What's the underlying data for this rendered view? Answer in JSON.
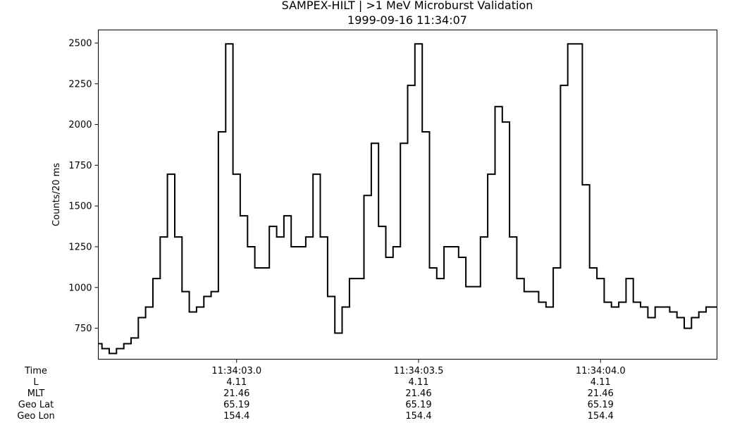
{
  "chart_data": {
    "type": "line",
    "drawstyle": "steps-mid",
    "title": "SAMPEX-HILT | >1 MeV Microburst Validation",
    "subtitle": "1999-09-16 11:34:07",
    "xlabel": "",
    "ylabel": "Counts/20 ms",
    "ylim": [
      560,
      2580
    ],
    "yticks": [
      750,
      1000,
      1250,
      1500,
      1750,
      2000,
      2250,
      2500
    ],
    "xlim": [
      "11:34:02.620",
      "11:34:04.320"
    ],
    "xtick_times": [
      "11:34:03.0",
      "11:34:03.5",
      "11:34:04.0"
    ],
    "sample_interval_ms": 20,
    "grid": false,
    "series": [
      {
        "color": "#000000",
        "x": [
          "11:34:02.620",
          "11:34:02.640",
          "11:34:02.660",
          "11:34:02.680",
          "11:34:02.700",
          "11:34:02.720",
          "11:34:02.740",
          "11:34:02.760",
          "11:34:02.780",
          "11:34:02.800",
          "11:34:02.820",
          "11:34:02.840",
          "11:34:02.860",
          "11:34:02.880",
          "11:34:02.900",
          "11:34:02.920",
          "11:34:02.940",
          "11:34:02.960",
          "11:34:02.980",
          "11:34:03.000",
          "11:34:03.020",
          "11:34:03.040",
          "11:34:03.060",
          "11:34:03.080",
          "11:34:03.100",
          "11:34:03.120",
          "11:34:03.140",
          "11:34:03.160",
          "11:34:03.180",
          "11:34:03.200",
          "11:34:03.220",
          "11:34:03.240",
          "11:34:03.260",
          "11:34:03.280",
          "11:34:03.300",
          "11:34:03.320",
          "11:34:03.340",
          "11:34:03.360",
          "11:34:03.380",
          "11:34:03.400",
          "11:34:03.420",
          "11:34:03.440",
          "11:34:03.460",
          "11:34:03.480",
          "11:34:03.500",
          "11:34:03.520",
          "11:34:03.540",
          "11:34:03.560",
          "11:34:03.580",
          "11:34:03.600",
          "11:34:03.620",
          "11:34:03.640",
          "11:34:03.660",
          "11:34:03.680",
          "11:34:03.700",
          "11:34:03.720",
          "11:34:03.740",
          "11:34:03.760",
          "11:34:03.780",
          "11:34:03.800",
          "11:34:03.820",
          "11:34:03.840",
          "11:34:03.860",
          "11:34:03.880",
          "11:34:03.900",
          "11:34:03.920",
          "11:34:03.940",
          "11:34:03.960",
          "11:34:03.980",
          "11:34:04.000",
          "11:34:04.020",
          "11:34:04.040",
          "11:34:04.060",
          "11:34:04.080",
          "11:34:04.100",
          "11:34:04.120",
          "11:34:04.140",
          "11:34:04.160",
          "11:34:04.180",
          "11:34:04.200",
          "11:34:04.220",
          "11:34:04.240",
          "11:34:04.260",
          "11:34:04.280",
          "11:34:04.300",
          "11:34:04.320"
        ],
        "values": [
          655,
          625,
          595,
          625,
          655,
          690,
          815,
          880,
          1055,
          1310,
          1695,
          1310,
          975,
          850,
          880,
          945,
          975,
          1955,
          2495,
          1695,
          1440,
          1250,
          1120,
          1120,
          1375,
          1310,
          1440,
          1250,
          1250,
          1310,
          1695,
          1310,
          945,
          720,
          880,
          1055,
          1055,
          1565,
          1885,
          1375,
          1185,
          1250,
          1885,
          2240,
          2495,
          1955,
          1120,
          1055,
          1250,
          1250,
          1185,
          1005,
          1005,
          1310,
          1695,
          2110,
          2015,
          1310,
          1055,
          975,
          975,
          910,
          880,
          1120,
          2240,
          2495,
          2495,
          1630,
          1120,
          1055,
          910,
          880,
          910,
          1055,
          910,
          880,
          815,
          880,
          880,
          850,
          815,
          750,
          815,
          850,
          880,
          880
        ]
      }
    ]
  },
  "info_table": {
    "row_labels": [
      "Time",
      "L",
      "MLT",
      "Geo Lat",
      "Geo Lon"
    ],
    "columns": [
      [
        "11:34:03.0",
        "4.11",
        "21.46",
        "65.19",
        "154.4"
      ],
      [
        "11:34:03.5",
        "4.11",
        "21.46",
        "65.19",
        "154.4"
      ],
      [
        "11:34:04.0",
        "4.11",
        "21.46",
        "65.19",
        "154.4"
      ]
    ]
  }
}
